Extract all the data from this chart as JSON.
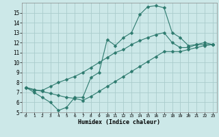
{
  "xlabel": "Humidex (Indice chaleur)",
  "bg_color": "#cce8e8",
  "grid_color": "#aacccc",
  "line_color": "#2d7a6e",
  "line1_x": [
    0,
    1,
    2,
    3,
    4,
    5,
    6,
    7,
    8,
    9,
    10,
    11,
    12,
    13,
    14,
    15,
    16,
    17,
    18,
    19,
    20,
    21,
    22,
    23
  ],
  "line1_y": [
    7.5,
    7.0,
    6.5,
    6.0,
    5.2,
    5.5,
    6.5,
    6.5,
    8.5,
    9.0,
    12.3,
    11.7,
    12.5,
    13.0,
    14.8,
    15.6,
    15.7,
    15.5,
    13.0,
    12.5,
    11.7,
    11.8,
    12.0,
    11.8
  ],
  "line2_x": [
    0,
    1,
    2,
    3,
    4,
    5,
    6,
    7,
    8,
    9,
    10,
    11,
    12,
    13,
    14,
    15,
    16,
    17,
    18,
    19,
    20,
    21,
    22,
    23
  ],
  "line2_y": [
    7.5,
    7.2,
    7.2,
    7.6,
    8.0,
    8.3,
    8.6,
    9.0,
    9.5,
    10.0,
    10.5,
    11.0,
    11.3,
    11.8,
    12.2,
    12.5,
    12.8,
    13.0,
    12.0,
    11.5,
    11.5,
    11.8,
    11.8,
    11.8
  ],
  "line3_x": [
    0,
    1,
    2,
    3,
    4,
    5,
    6,
    7,
    8,
    9,
    10,
    11,
    12,
    13,
    14,
    15,
    16,
    17,
    18,
    19,
    20,
    21,
    22,
    23
  ],
  "line3_y": [
    7.5,
    7.3,
    7.1,
    6.9,
    6.7,
    6.5,
    6.4,
    6.2,
    6.6,
    7.1,
    7.6,
    8.1,
    8.6,
    9.1,
    9.6,
    10.1,
    10.6,
    11.1,
    11.1,
    11.1,
    11.3,
    11.5,
    11.7,
    11.8
  ],
  "xlim": [
    -0.5,
    23.5
  ],
  "ylim": [
    5,
    16
  ],
  "xticks": [
    0,
    1,
    2,
    3,
    4,
    5,
    6,
    7,
    8,
    9,
    10,
    11,
    12,
    13,
    14,
    15,
    16,
    17,
    18,
    19,
    20,
    21,
    22,
    23
  ],
  "yticks": [
    5,
    6,
    7,
    8,
    9,
    10,
    11,
    12,
    13,
    14,
    15
  ],
  "marker_size": 2.5
}
